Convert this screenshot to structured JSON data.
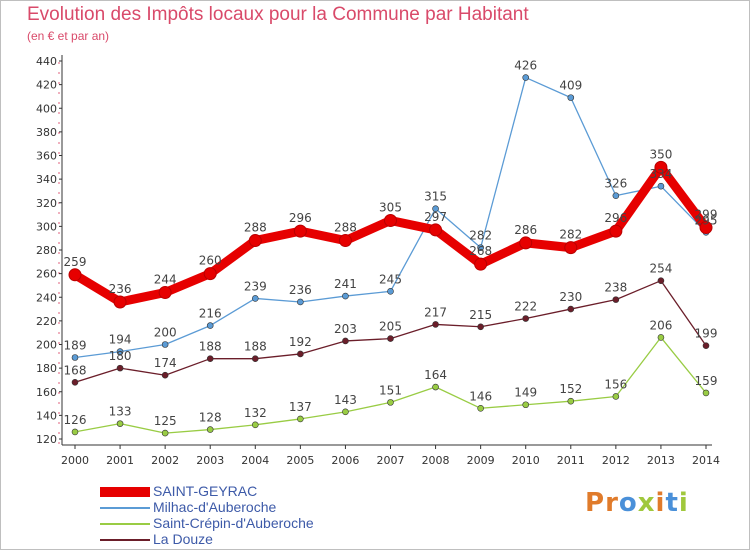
{
  "title": "Evolution des Impôts locaux pour la Commune par Habitant",
  "subtitle": "(en € et par an)",
  "logo": "Proxiti",
  "chart_data": {
    "type": "line",
    "title": "Evolution des Impôts locaux pour la Commune par Habitant",
    "subtitle": "(en € et par an)",
    "x": [
      "2000",
      "2001",
      "2002",
      "2003",
      "2004",
      "2005",
      "2006",
      "2007",
      "2008",
      "2009",
      "2010",
      "2011",
      "2012",
      "2013",
      "2014"
    ],
    "yticks": [
      120,
      140,
      160,
      180,
      200,
      220,
      240,
      260,
      280,
      300,
      320,
      340,
      360,
      380,
      400,
      420,
      440
    ],
    "ylim": [
      120,
      440
    ],
    "grid": false,
    "legend_position": "bottom-left",
    "series": [
      {
        "name": "SAINT-GEYRAC",
        "color": "#e60000",
        "values": [
          259,
          236,
          244,
          260,
          288,
          296,
          288,
          305,
          297,
          268,
          286,
          282,
          296,
          350,
          299
        ]
      },
      {
        "name": "Milhac-d'Auberoche",
        "color": "#5b9bd5",
        "values": [
          189,
          194,
          200,
          216,
          239,
          236,
          241,
          245,
          315,
          282,
          426,
          409,
          326,
          334,
          295
        ]
      },
      {
        "name": "Saint-Crépin-d'Auberoche",
        "color": "#99cc44",
        "values": [
          126,
          133,
          125,
          128,
          132,
          137,
          143,
          151,
          164,
          146,
          149,
          152,
          156,
          206,
          159
        ]
      },
      {
        "name": "La Douze",
        "color": "#6b1e2a",
        "values": [
          168,
          180,
          174,
          188,
          188,
          192,
          203,
          205,
          217,
          215,
          222,
          230,
          238,
          254,
          199
        ]
      }
    ],
    "data_labels": [
      {
        "series": 0,
        "labels": [
          "259",
          "236",
          "244",
          "260",
          "288",
          "296",
          "288",
          "305",
          "297",
          "268",
          "286",
          "282",
          "296",
          "350",
          "299"
        ]
      },
      {
        "series": 1,
        "labels": [
          "189",
          "194",
          "200",
          "216",
          "239",
          "236",
          "241",
          "245",
          "315",
          "282",
          "426",
          "409",
          "326",
          "334",
          "295"
        ]
      },
      {
        "series": 2,
        "labels": [
          "126",
          "133",
          "125",
          "128",
          "132",
          "137",
          "143",
          "151",
          "164",
          "146",
          "149",
          "152",
          "156",
          "206",
          "159"
        ]
      },
      {
        "series": 3,
        "labels": [
          "168",
          "180",
          "174",
          "188",
          "188",
          "192",
          "203",
          "205",
          "217",
          "215",
          "222",
          "230",
          "238",
          "254",
          "199"
        ]
      }
    ]
  }
}
